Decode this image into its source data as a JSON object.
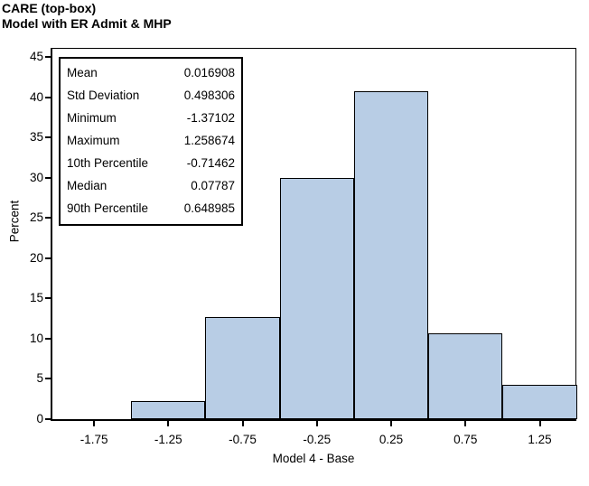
{
  "title": {
    "line1": "CARE (top-box)",
    "line2": "Model with ER Admit & MHP"
  },
  "stats_box": {
    "rows": [
      {
        "label": "Mean",
        "value": "0.016908"
      },
      {
        "label": "Std Deviation",
        "value": "0.498306"
      },
      {
        "label": "Minimum",
        "value": "-1.37102"
      },
      {
        "label": "Maximum",
        "value": "1.258674"
      },
      {
        "label": "10th Percentile",
        "value": "-0.71462"
      },
      {
        "label": "Median",
        "value": "0.07787"
      },
      {
        "label": "90th Percentile",
        "value": "0.648985"
      }
    ]
  },
  "chart_data": {
    "type": "bar",
    "subtype": "histogram",
    "title": "CARE (top-box) Model with ER Admit & MHP",
    "xlabel": "Model 4 - Base",
    "ylabel": "Percent",
    "bin_centers": [
      -1.25,
      -0.75,
      -0.25,
      0.25,
      0.75,
      1.25
    ],
    "bin_width": 0.5,
    "values": [
      2.2,
      12.7,
      30.0,
      40.7,
      10.7,
      4.3
    ],
    "x_tick_values": [
      -1.75,
      -1.25,
      -0.75,
      -0.25,
      0.25,
      0.75,
      1.25
    ],
    "x_tick_labels": [
      "-1.75",
      "-1.25",
      "-0.75",
      "-0.25",
      "0.25",
      "0.75",
      "1.25"
    ],
    "y_tick_values": [
      0,
      5,
      10,
      15,
      20,
      25,
      30,
      35,
      40,
      45
    ],
    "xlim": [
      -2.03,
      1.49
    ],
    "ylim": [
      0,
      46
    ],
    "grid": false,
    "legend": "none",
    "bar_fill_color": "#b8cde5",
    "bar_border_color": "#000000"
  }
}
